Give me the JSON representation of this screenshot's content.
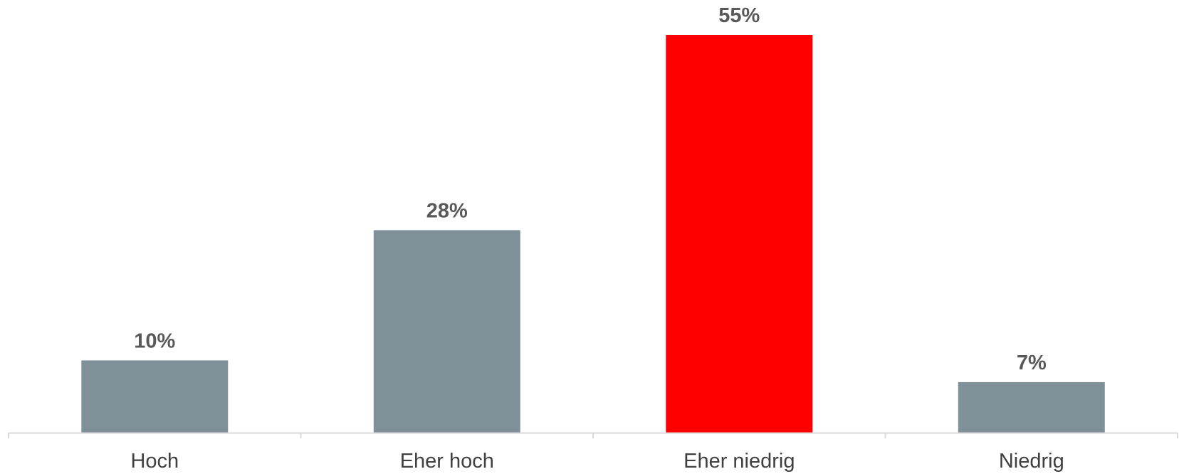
{
  "chart_data": {
    "type": "bar",
    "categories": [
      "Hoch",
      "Eher hoch",
      "Eher niedrig",
      "Niedrig"
    ],
    "values": [
      10,
      28,
      55,
      7
    ],
    "value_labels": [
      "10%",
      "28%",
      "55%",
      "7%"
    ],
    "unit": "%",
    "title": "",
    "xlabel": "",
    "ylabel": "",
    "ylim": [
      0,
      55
    ],
    "grid": false,
    "legend": "none",
    "colors": {
      "default_bar": "#7F9099",
      "highlight_bar": "#FF0000",
      "axis": "#D9D9D9",
      "data_label_text": "#595959",
      "category_label_text": "#404040"
    },
    "highlight_index": 2
  }
}
